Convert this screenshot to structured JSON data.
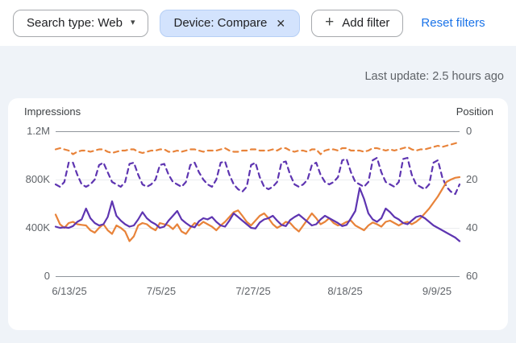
{
  "filters_bar": {
    "search_type_chip": {
      "label": "Search type: Web"
    },
    "device_chip": {
      "label": "Device: Compare"
    },
    "add_filter_button": {
      "label": "Add filter"
    },
    "reset_filters_label": "Reset filters"
  },
  "icons": {
    "dropdown_caret": "▾",
    "remove": "✕",
    "add": "+"
  },
  "status": {
    "last_update": "Last update: 2.5 hours ago"
  },
  "colors": {
    "accent_blue": "#1a73e8",
    "selected_chip_bg": "#d3e3fd",
    "series_orange": "#e8833a",
    "series_purple": "#5e35b1",
    "page_background": "#eff3f8"
  },
  "chart_data": {
    "type": "line",
    "title": "",
    "grid": true,
    "legend": "none",
    "left_axis": {
      "label": "Impressions",
      "tick_labels": [
        "1.2M",
        "800K",
        "400K",
        "0"
      ],
      "min": 0,
      "max": 1200000
    },
    "right_axis": {
      "label": "Position",
      "tick_labels": [
        "0",
        "20",
        "40",
        "60"
      ],
      "min": 0,
      "max": 60,
      "inverted": true
    },
    "x_tick_labels": [
      "6/13/25",
      "7/5/25",
      "7/27/25",
      "8/18/25",
      "9/9/25"
    ],
    "notes": "daily points; left-axis series values are impressions in thousands; right-axis series values are average position (0 at top)",
    "series": [
      {
        "name": "position-purple-dashed",
        "axis": "right",
        "color": "#5e35b1",
        "style": "dashed",
        "values": [
          22,
          23,
          21,
          13,
          13,
          18,
          22,
          23,
          22,
          20,
          14,
          13,
          17,
          21,
          22,
          23,
          21,
          13.5,
          13,
          18,
          22,
          23,
          22,
          20,
          14,
          13.5,
          18,
          21,
          22,
          23,
          21,
          14,
          13,
          17,
          20,
          22,
          23,
          20,
          13,
          12.5,
          18,
          22,
          24,
          25,
          23,
          14,
          13,
          19,
          23,
          24,
          23,
          21,
          13,
          12.5,
          18,
          22,
          23,
          22,
          20,
          14,
          13,
          18,
          21,
          22,
          21,
          19,
          12,
          11.5,
          17,
          21,
          22,
          23,
          21,
          12,
          11,
          17,
          21,
          22,
          23,
          21,
          11.5,
          11,
          18,
          22,
          23,
          24,
          22,
          13,
          12,
          19,
          23,
          25,
          26,
          22
        ]
      },
      {
        "name": "position-orange-dashed",
        "axis": "right",
        "color": "#e8833a",
        "style": "dashed",
        "values": [
          7.5,
          7,
          7.5,
          8,
          9.5,
          8.5,
          8,
          8,
          8.5,
          8,
          7.5,
          7.5,
          8.5,
          9,
          8.5,
          8,
          8,
          7.5,
          7.5,
          8.5,
          9,
          8.5,
          8,
          8,
          7.5,
          7.5,
          8.5,
          8.5,
          8,
          8.5,
          8,
          7.5,
          7.5,
          8,
          8.5,
          8,
          8,
          8,
          7.5,
          7,
          8,
          8.5,
          8.5,
          8,
          8,
          7.5,
          7.5,
          8,
          8,
          8,
          7.5,
          8,
          7,
          7,
          8,
          8.5,
          8,
          8,
          8.5,
          7.5,
          7.5,
          9.5,
          8,
          7.5,
          7.5,
          8,
          7,
          7,
          8,
          8,
          8,
          8.5,
          8,
          7,
          7,
          7.5,
          8,
          7.5,
          8,
          7.5,
          7,
          6.5,
          7.5,
          8,
          7.5,
          7.5,
          7,
          6.5,
          6,
          6.5,
          6,
          5.5,
          5,
          4.5
        ]
      },
      {
        "name": "impressions-orange-solid",
        "axis": "left",
        "color": "#e8833a",
        "style": "solid",
        "values": [
          510,
          430,
          400,
          440,
          450,
          430,
          425,
          420,
          380,
          360,
          400,
          430,
          380,
          350,
          420,
          400,
          370,
          290,
          330,
          420,
          440,
          430,
          400,
          380,
          440,
          430,
          420,
          390,
          430,
          370,
          350,
          400,
          440,
          420,
          450,
          430,
          410,
          380,
          420,
          450,
          490,
          530,
          545,
          500,
          450,
          420,
          460,
          500,
          520,
          480,
          430,
          400,
          420,
          450,
          440,
          400,
          370,
          420,
          470,
          520,
          480,
          430,
          450,
          480,
          440,
          420,
          430,
          450,
          460,
          420,
          400,
          380,
          420,
          445,
          430,
          410,
          450,
          460,
          440,
          420,
          440,
          450,
          430,
          450,
          480,
          520,
          560,
          610,
          660,
          720,
          780,
          800,
          815,
          820
        ]
      },
      {
        "name": "impressions-purple-solid",
        "axis": "left",
        "color": "#5e35b1",
        "style": "solid",
        "values": [
          410,
          400,
          405,
          400,
          415,
          450,
          470,
          560,
          480,
          440,
          420,
          430,
          490,
          620,
          500,
          460,
          430,
          410,
          420,
          470,
          530,
          480,
          450,
          430,
          400,
          410,
          460,
          500,
          540,
          470,
          440,
          415,
          405,
          455,
          480,
          470,
          490,
          450,
          420,
          410,
          460,
          520,
          490,
          460,
          430,
          400,
          395,
          445,
          470,
          480,
          500,
          460,
          425,
          415,
          465,
          490,
          510,
          480,
          450,
          420,
          430,
          470,
          500,
          480,
          460,
          440,
          415,
          425,
          480,
          540,
          730,
          640,
          520,
          470,
          450,
          480,
          560,
          530,
          490,
          470,
          440,
          430,
          460,
          490,
          500,
          480,
          450,
          420,
          400,
          380,
          360,
          340,
          320,
          290
        ]
      }
    ]
  }
}
